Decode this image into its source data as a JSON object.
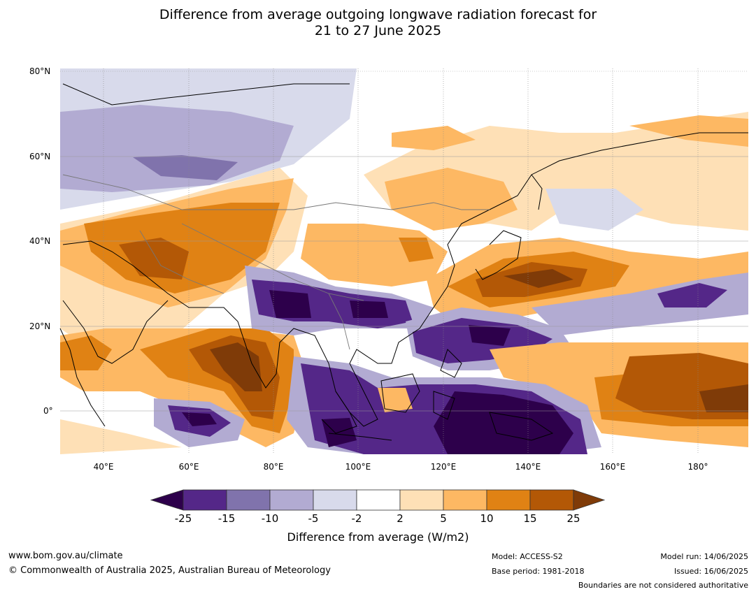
{
  "title": {
    "line1": "Difference from average outgoing longwave radiation forecast for",
    "line2": "21 to 27 June 2025"
  },
  "map": {
    "lat_labels": [
      "80°N",
      "60°N",
      "40°N",
      "20°N",
      "0°"
    ],
    "lon_labels": [
      "40°E",
      "60°E",
      "80°E",
      "100°E",
      "120°E",
      "140°E",
      "160°E",
      "180°"
    ],
    "lon_range": [
      30,
      192
    ],
    "lat_range": [
      -10,
      81
    ]
  },
  "colorbar": {
    "ticks": [
      "-25",
      "-15",
      "-10",
      "-5",
      "-2",
      "2",
      "5",
      "10",
      "15",
      "25"
    ],
    "colors": [
      "#2d004b",
      "#542788",
      "#8073ac",
      "#b2abd2",
      "#d8daeb",
      "#ffffff",
      "#fee0b6",
      "#fdb863",
      "#e08214",
      "#b35806",
      "#7f3b08"
    ],
    "label": "Difference from average (W/m2)"
  },
  "footer": {
    "website": "www.bom.gov.au/climate",
    "copyright": "© Commonwealth of Australia 2025, Australian Bureau of Meteorology",
    "model": "Model: ACCESS-S2",
    "base_period": "Base period: 1981-2018",
    "model_run": "Model run: 14/06/2025",
    "issued": "Issued: 16/06/2025",
    "boundaries": "Boundaries are not considered authoritative"
  }
}
